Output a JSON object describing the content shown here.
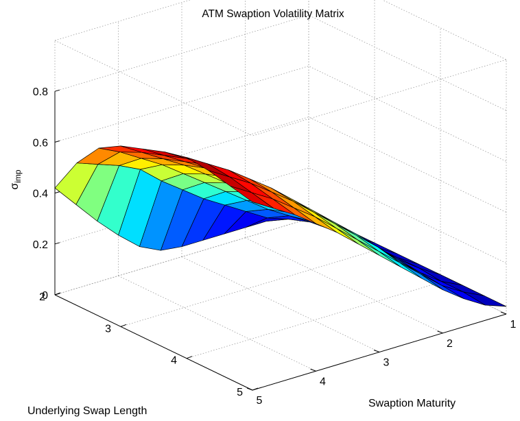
{
  "chart_data": {
    "type": "surface",
    "title": "ATM Swaption Volatility Matrix",
    "zlabel": "σ",
    "zlabel_subscript": "imp",
    "xlabel": "Swaption Maturity",
    "ylabel": "Underlying Swap Length",
    "x_ticks": [
      "1",
      "2",
      "3",
      "4",
      "5"
    ],
    "y_ticks": [
      "2",
      "3",
      "4",
      "5"
    ],
    "z_ticks": [
      "0",
      "0.2",
      "0.4",
      "0.6",
      "0.8"
    ],
    "xlim": [
      1,
      5
    ],
    "ylim": [
      2,
      5
    ],
    "zlim": [
      0,
      0.8
    ],
    "grid": true,
    "colormap": "jet",
    "maturity": [
      1,
      1.3333,
      1.6667,
      2,
      2.3333,
      2.6667,
      3,
      3.3333,
      3.6667,
      4,
      4.3333,
      4.6667,
      5
    ],
    "swap_length": [
      2,
      2.3333,
      2.6667,
      3,
      3.3333,
      3.6667,
      4,
      4.3333,
      4.6667,
      5
    ],
    "z": [
      [
        0.04,
        0.04,
        0.04,
        0.04,
        0.04,
        0.04,
        0.04,
        0.05,
        0.09,
        0.16,
        0.24,
        0.33,
        0.42
      ],
      [
        0.03,
        0.06,
        0.09,
        0.12,
        0.17,
        0.22,
        0.27,
        0.33,
        0.39,
        0.46,
        0.5,
        0.53,
        0.56
      ],
      [
        0.03,
        0.07,
        0.12,
        0.17,
        0.22,
        0.28,
        0.34,
        0.4,
        0.46,
        0.52,
        0.57,
        0.62,
        0.66
      ],
      [
        0.03,
        0.08,
        0.13,
        0.19,
        0.25,
        0.32,
        0.38,
        0.44,
        0.5,
        0.56,
        0.61,
        0.66,
        0.71
      ],
      [
        0.03,
        0.08,
        0.14,
        0.2,
        0.27,
        0.34,
        0.41,
        0.47,
        0.53,
        0.59,
        0.64,
        0.69,
        0.74
      ],
      [
        0.03,
        0.08,
        0.14,
        0.21,
        0.28,
        0.35,
        0.42,
        0.48,
        0.55,
        0.61,
        0.67,
        0.72,
        0.77
      ],
      [
        0.03,
        0.08,
        0.14,
        0.21,
        0.29,
        0.36,
        0.43,
        0.5,
        0.57,
        0.63,
        0.69,
        0.74,
        0.79
      ],
      [
        0.03,
        0.07,
        0.13,
        0.2,
        0.28,
        0.35,
        0.42,
        0.49,
        0.56,
        0.62,
        0.68,
        0.73,
        0.78
      ],
      [
        0.03,
        0.07,
        0.12,
        0.19,
        0.26,
        0.33,
        0.4,
        0.47,
        0.54,
        0.6,
        0.66,
        0.71,
        0.76
      ],
      [
        0.03,
        0.06,
        0.11,
        0.17,
        0.24,
        0.31,
        0.38,
        0.45,
        0.52,
        0.58,
        0.64,
        0.69,
        0.74
      ]
    ]
  }
}
